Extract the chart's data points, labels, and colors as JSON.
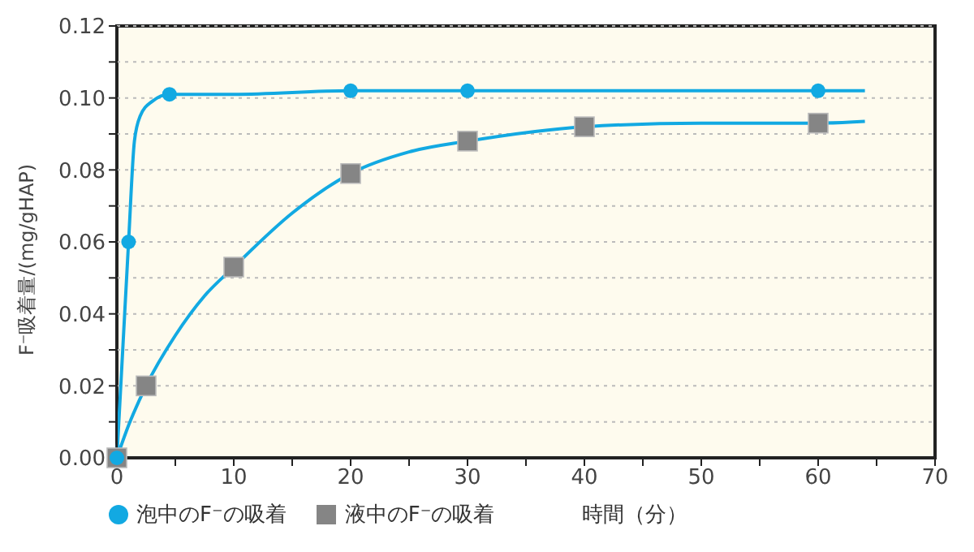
{
  "chart_data": {
    "type": "scatter",
    "xlabel": "時間（分）",
    "ylabel": "F⁻吸着量/(mg/gHAP)",
    "xlim": [
      0,
      70
    ],
    "xticks": [
      0,
      {
        "value": 5,
        "label": null
      },
      10,
      {
        "value": 15,
        "label": null
      },
      20,
      {
        "value": 25,
        "label": null
      },
      30,
      {
        "value": 35,
        "label": null
      },
      40,
      {
        "value": 45,
        "label": null
      },
      50,
      {
        "value": 55,
        "label": null
      },
      60,
      {
        "value": 65,
        "label": null
      },
      70
    ],
    "ylim": [
      0,
      0.12
    ],
    "yticks": [
      {
        "value": 0,
        "label": "0.00"
      },
      {
        "value": 0.01,
        "label": null
      },
      {
        "value": 0.02,
        "label": "0.02"
      },
      {
        "value": 0.03,
        "label": null
      },
      {
        "value": 0.04,
        "label": "0.04"
      },
      {
        "value": 0.05,
        "label": null
      },
      {
        "value": 0.06,
        "label": "0.06"
      },
      {
        "value": 0.07,
        "label": null
      },
      {
        "value": 0.08,
        "label": "0.08"
      },
      {
        "value": 0.09,
        "label": null
      },
      {
        "value": 0.1,
        "label": "0.10"
      },
      {
        "value": 0.11,
        "label": null
      },
      {
        "value": 0.12,
        "label": "0.12"
      }
    ],
    "grid": "y",
    "legend": "bottom left",
    "series": [
      {
        "name": "泡中のF⁻の吸着",
        "marker": "circle",
        "color": "#12a9e2",
        "x": [
          0,
          1,
          4.5,
          20,
          30,
          60
        ],
        "values": [
          0,
          0.06,
          0.101,
          0.102,
          0.102,
          0.102
        ]
      },
      {
        "name": "液中のF⁻の吸着",
        "marker": "square",
        "color": "#858585",
        "x": [
          0,
          2.5,
          10,
          20,
          30,
          40,
          60
        ],
        "values": [
          0,
          0.02,
          0.053,
          0.079,
          0.088,
          0.092,
          0.093
        ]
      },
      {
        "type": "line",
        "marker": "none",
        "color": "#12a9e2",
        "x": [
          0,
          0.5,
          1,
          1.5,
          2,
          3,
          4.5,
          10,
          20,
          40,
          64
        ],
        "values": [
          0,
          0.03,
          0.06,
          0.088,
          0.095,
          0.099,
          0.101,
          0.101,
          0.102,
          0.102,
          0.102
        ]
      },
      {
        "type": "line",
        "marker": "none",
        "color": "#12a9e2",
        "x": [
          0,
          1,
          2.5,
          5,
          7.5,
          10,
          15,
          20,
          25,
          30,
          40,
          50,
          60,
          64
        ],
        "values": [
          0,
          0.009,
          0.02,
          0.034,
          0.045,
          0.053,
          0.068,
          0.079,
          0.085,
          0.088,
          0.092,
          0.093,
          0.093,
          0.0935
        ]
      }
    ]
  }
}
